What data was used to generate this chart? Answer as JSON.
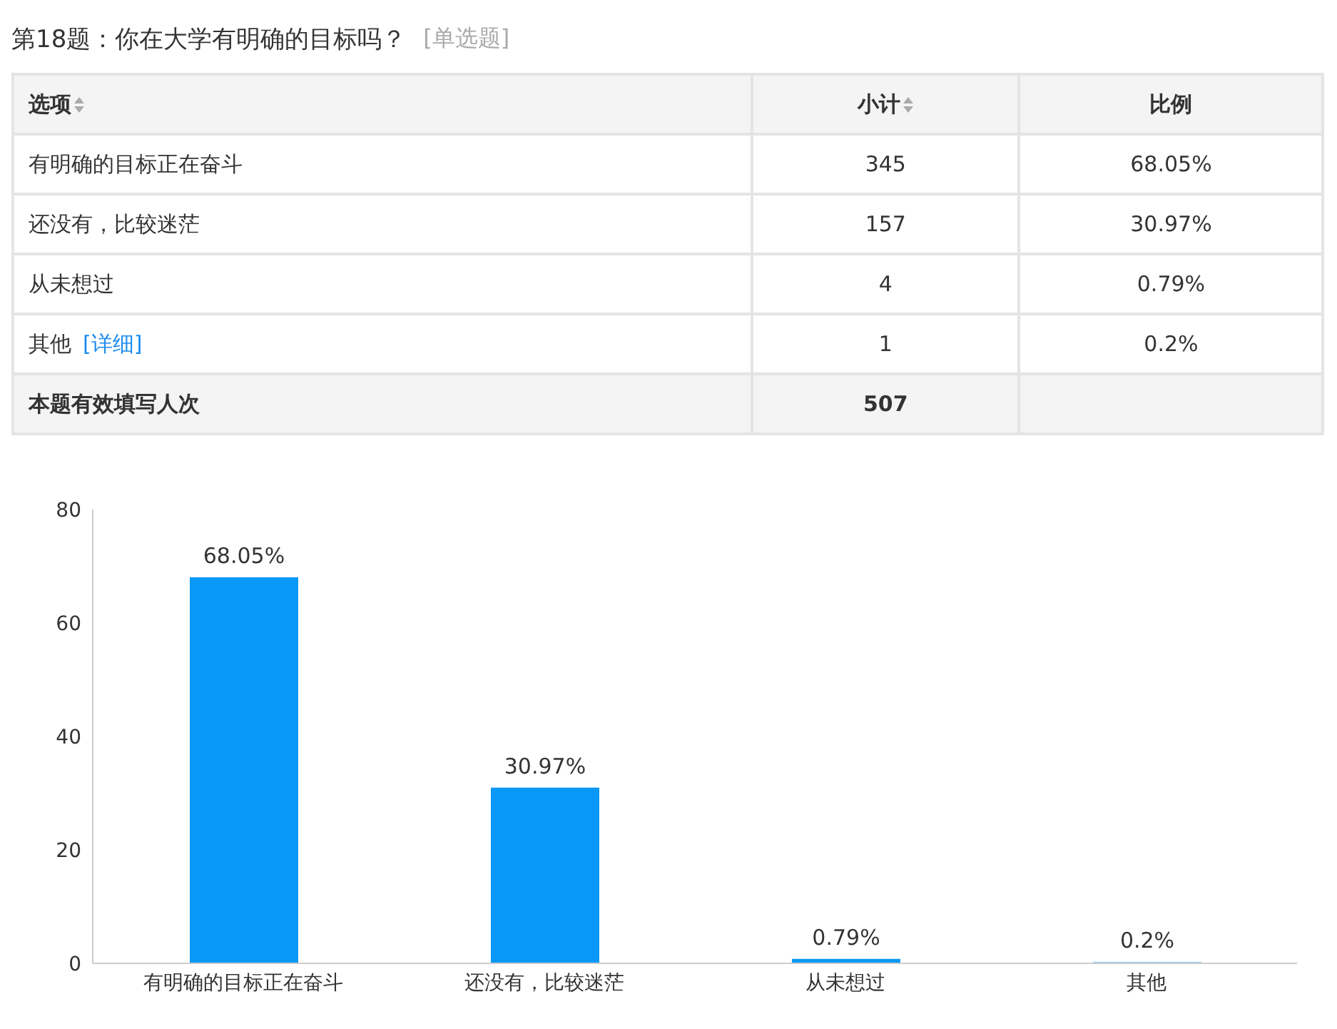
{
  "chart_data": [
    {
      "type": "other",
      "title": "第18题：你在大学有明确的目标吗？",
      "subtitle": "[单选题]",
      "xlabel": "选项",
      "categories": [
        "有明确的目标正在奋斗",
        "还没有，比较迷茫",
        "从未想过",
        "其他",
        "本题有效填写人次"
      ],
      "annotations": [
        "[详细]"
      ],
      "data_labels": true,
      "series": [
        {
          "name": "小计",
          "colors": [
            "#ffffff",
            "#ffffff",
            "#ffffff",
            "#ffffff",
            "#f4f4f4"
          ],
          "values": [
            345,
            157,
            4,
            1,
            507
          ]
        },
        {
          "name": "比例",
          "colors": [
            "#ffffff",
            "#ffffff",
            "#ffffff",
            "#ffffff",
            "#f4f4f4"
          ],
          "values": [
            68.05,
            30.97,
            0.79,
            0.2,
            null
          ],
          "value_labels": [
            "68.05%",
            "30.97%",
            "0.79%",
            "0.2%",
            null
          ]
        }
      ]
    },
    {
      "type": "bar",
      "categories": [
        "有明确的目标正在奋斗",
        "还没有，比较迷茫",
        "从未想过",
        "其他"
      ],
      "values": [
        68.05,
        30.97,
        0.79,
        0.2
      ],
      "value_labels": [
        "68.05%",
        "30.97%",
        "0.79%",
        "0.2%"
      ],
      "color": "#0898f8",
      "ylim": [
        0,
        80
      ],
      "yticks": [
        0,
        20,
        40,
        60,
        80
      ],
      "grid": false
    }
  ]
}
